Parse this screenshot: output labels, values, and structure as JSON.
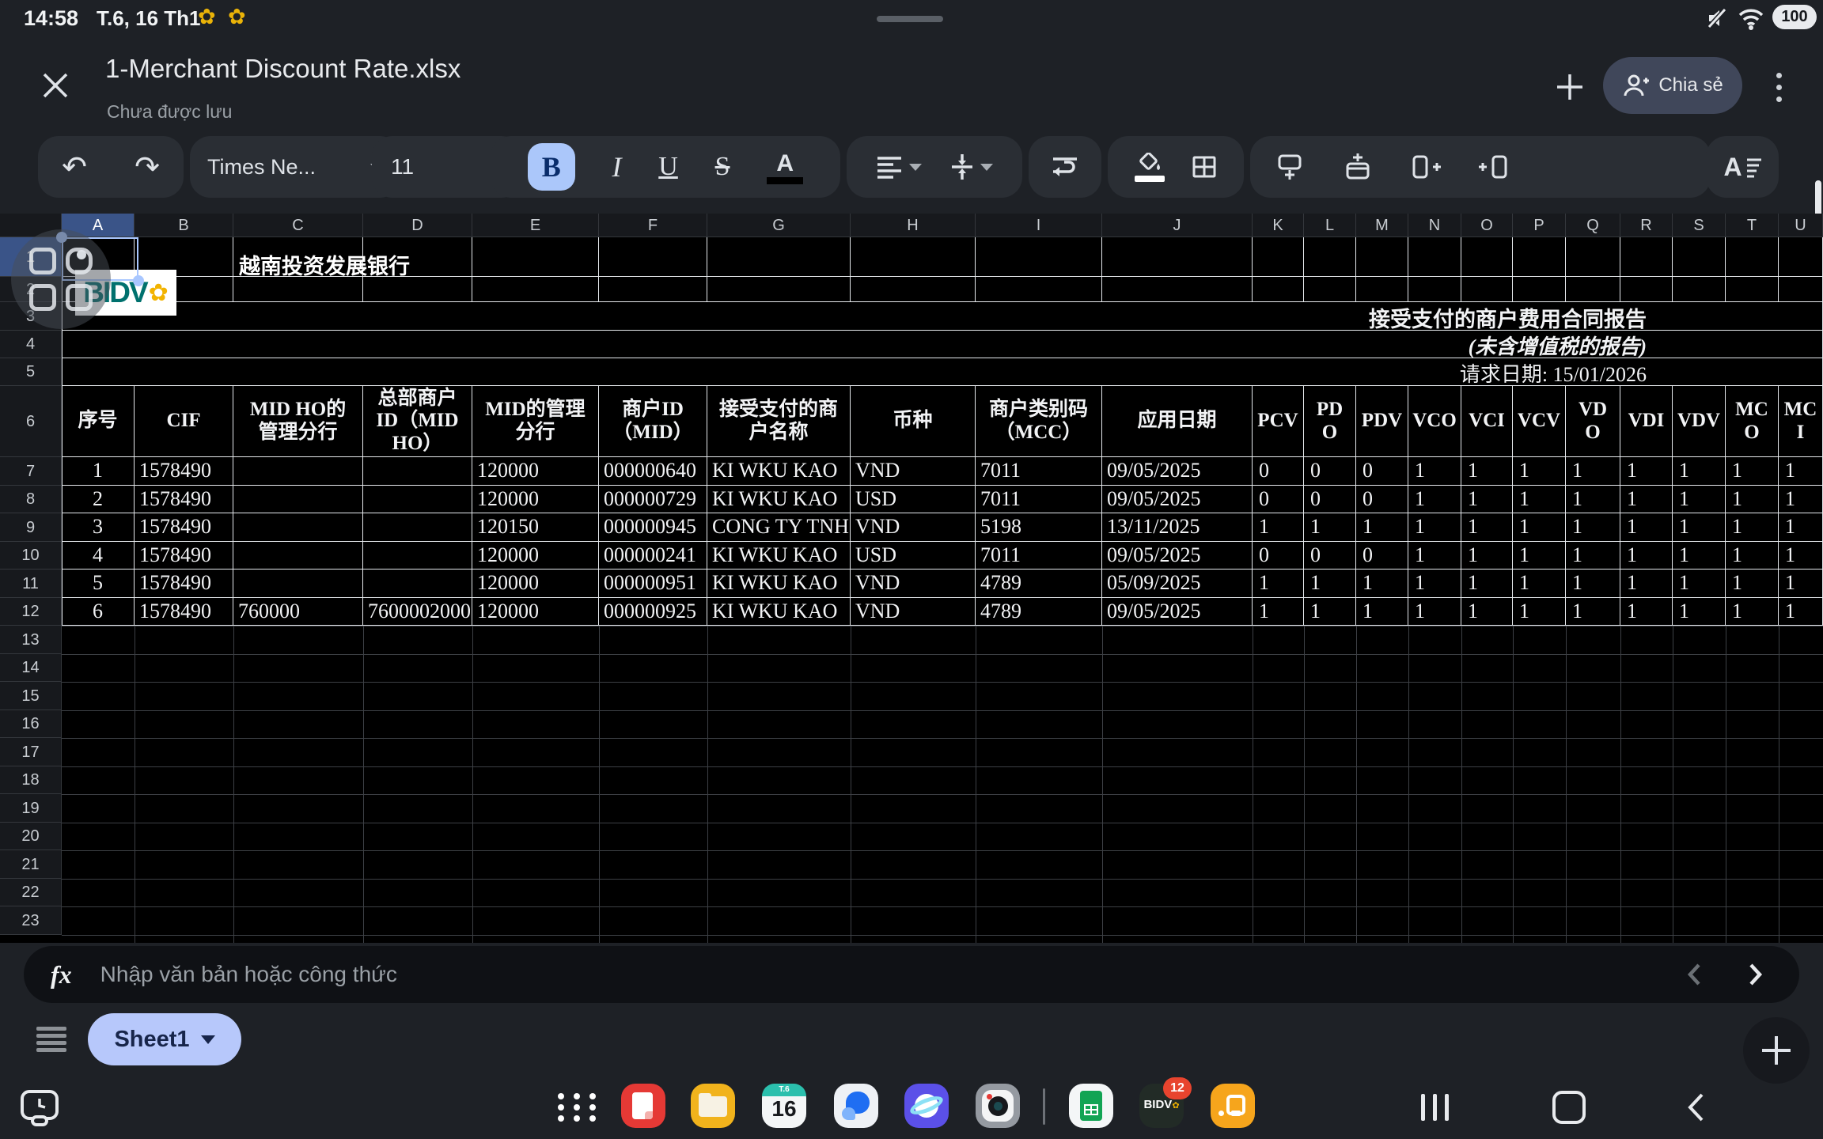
{
  "status_bar": {
    "time": "14:58",
    "date": "T.6, 16 Th1",
    "battery": "100"
  },
  "title_bar": {
    "title": "1-Merchant Discount Rate.xlsx",
    "subtitle": "Chưa được lưu",
    "share_label": "Chia sẻ"
  },
  "toolbar": {
    "font_name": "Times Ne...",
    "font_size": "11",
    "bold_label": "B",
    "italic_label": "I",
    "underline_label": "U",
    "strikethrough_label": "S",
    "text_color_label": "A",
    "format_label": "A"
  },
  "grid": {
    "columns": [
      "A",
      "B",
      "C",
      "D",
      "E",
      "F",
      "G",
      "H",
      "I",
      "J",
      "K",
      "L",
      "M",
      "N",
      "O",
      "P",
      "Q",
      "R",
      "S",
      "T",
      "U"
    ],
    "rows": [
      "1",
      "2",
      "3",
      "4",
      "5",
      "6",
      "7",
      "8",
      "9",
      "10",
      "11",
      "12",
      "13",
      "14",
      "15",
      "16",
      "17",
      "18",
      "19",
      "20",
      "21",
      "22",
      "23"
    ],
    "selected_cell": "A1",
    "selected_column": "A",
    "selected_row": "1"
  },
  "sheet_content": {
    "logo_text": "BIDV",
    "company_name": "越南投资发展银行",
    "report_title": "接受支付的商户费用合同报告",
    "report_subtitle": "(未含增值税的报告)",
    "request_date": "请求日期: 15/01/2026",
    "table": {
      "headers": [
        "序号",
        "CIF",
        "MID HO的\n管理分行",
        "总部商户\nID（MID\nHO）",
        "MID的管理\n分行",
        "商户ID\n（MID）",
        "接受支付的商\n户名称",
        "币种",
        "商户类别码\n（MCC）",
        "应用日期",
        "PCV",
        "PD\nO",
        "PDV",
        "VCO",
        "VCI",
        "VCV",
        "VD\nO",
        "VDI",
        "VDV",
        "MC\nO",
        "MC\nI"
      ],
      "data_rows": [
        [
          "1",
          "1578490",
          "",
          "",
          "120000",
          "000000640",
          "KI WKU KAO",
          "VND",
          "7011",
          "09/05/2025",
          "0",
          "0",
          "0",
          "1",
          "1",
          "1",
          "1",
          "1",
          "1",
          "1",
          "1"
        ],
        [
          "2",
          "1578490",
          "",
          "",
          "120000",
          "000000729",
          "KI WKU KAO",
          "USD",
          "7011",
          "09/05/2025",
          "0",
          "0",
          "0",
          "1",
          "1",
          "1",
          "1",
          "1",
          "1",
          "1",
          "1"
        ],
        [
          "3",
          "1578490",
          "",
          "",
          "120150",
          "000000945",
          "CONG TY TNH",
          "VND",
          "5198",
          "13/11/2025",
          "1",
          "1",
          "1",
          "1",
          "1",
          "1",
          "1",
          "1",
          "1",
          "1",
          "1"
        ],
        [
          "4",
          "1578490",
          "",
          "",
          "120000",
          "000000241",
          "KI WKU KAO",
          "USD",
          "7011",
          "09/05/2025",
          "0",
          "0",
          "0",
          "1",
          "1",
          "1",
          "1",
          "1",
          "1",
          "1",
          "1"
        ],
        [
          "5",
          "1578490",
          "",
          "",
          "120000",
          "000000951",
          "KI WKU KAO",
          "VND",
          "4789",
          "05/09/2025",
          "1",
          "1",
          "1",
          "1",
          "1",
          "1",
          "1",
          "1",
          "1",
          "1",
          "1"
        ],
        [
          "6",
          "1578490",
          "760000",
          "7600002000",
          "120000",
          "000000925",
          "KI WKU KAO",
          "VND",
          "4789",
          "09/05/2025",
          "1",
          "1",
          "1",
          "1",
          "1",
          "1",
          "1",
          "1",
          "1",
          "1",
          "1"
        ]
      ]
    }
  },
  "formula_bar": {
    "placeholder": "Nhập văn bản hoặc công thức"
  },
  "sheet_bar": {
    "sheet_name": "Sheet1"
  },
  "dock": {
    "calendar_weekday": "T.6",
    "calendar_day": "16",
    "bidv_label": "BIDV",
    "bidv_badge": "12"
  }
}
